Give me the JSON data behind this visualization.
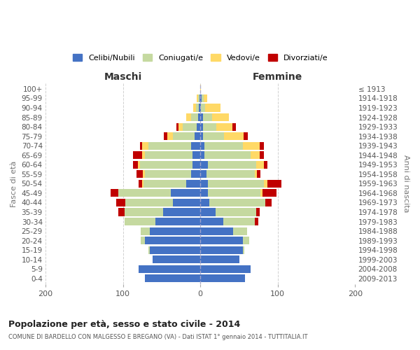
{
  "age_groups": [
    "0-4",
    "5-9",
    "10-14",
    "15-19",
    "20-24",
    "25-29",
    "30-34",
    "35-39",
    "40-44",
    "45-49",
    "50-54",
    "55-59",
    "60-64",
    "65-69",
    "70-74",
    "75-79",
    "80-84",
    "85-89",
    "90-94",
    "95-99",
    "100+"
  ],
  "birth_years": [
    "2009-2013",
    "2004-2008",
    "1999-2003",
    "1994-1998",
    "1989-1993",
    "1984-1988",
    "1979-1983",
    "1974-1978",
    "1969-1973",
    "1964-1968",
    "1959-1963",
    "1954-1958",
    "1949-1953",
    "1944-1948",
    "1939-1943",
    "1934-1938",
    "1929-1933",
    "1924-1928",
    "1919-1923",
    "1914-1918",
    "≤ 1913"
  ],
  "male_celibi": [
    72,
    80,
    62,
    65,
    72,
    65,
    58,
    48,
    35,
    38,
    18,
    12,
    10,
    10,
    12,
    7,
    5,
    3,
    2,
    1,
    0
  ],
  "male_coniugati": [
    0,
    0,
    0,
    2,
    5,
    12,
    40,
    50,
    62,
    68,
    55,
    60,
    68,
    62,
    55,
    28,
    18,
    9,
    4,
    2,
    0
  ],
  "male_vedovi": [
    0,
    0,
    0,
    0,
    0,
    0,
    0,
    0,
    0,
    0,
    2,
    2,
    3,
    3,
    8,
    8,
    5,
    6,
    3,
    2,
    0
  ],
  "male_divorziati": [
    0,
    0,
    0,
    0,
    0,
    0,
    0,
    8,
    12,
    10,
    5,
    8,
    6,
    12,
    3,
    4,
    3,
    0,
    0,
    0,
    0
  ],
  "female_celibi": [
    58,
    65,
    50,
    55,
    55,
    42,
    30,
    20,
    12,
    10,
    10,
    8,
    10,
    5,
    5,
    3,
    3,
    3,
    1,
    2,
    0
  ],
  "female_coniugati": [
    0,
    0,
    0,
    2,
    8,
    18,
    40,
    52,
    72,
    68,
    72,
    62,
    62,
    60,
    50,
    28,
    18,
    12,
    5,
    2,
    0
  ],
  "female_vedovi": [
    0,
    0,
    0,
    0,
    0,
    0,
    0,
    0,
    0,
    2,
    5,
    3,
    10,
    12,
    22,
    25,
    20,
    22,
    20,
    5,
    1
  ],
  "female_divorziati": [
    0,
    0,
    0,
    0,
    0,
    0,
    5,
    5,
    8,
    18,
    18,
    5,
    5,
    5,
    5,
    5,
    5,
    0,
    0,
    0,
    0
  ],
  "color_celibi": "#4472c4",
  "color_coniugati": "#c5d9a0",
  "color_vedovi": "#ffd966",
  "color_divorziati": "#c00000",
  "title": "Popolazione per età, sesso e stato civile - 2014",
  "subtitle": "COMUNE DI BARDELLO CON MALGESSO E BREGANO (VA) - Dati ISTAT 1° gennaio 2014 - TUTTITALIA.IT",
  "xlabel_maschi": "Maschi",
  "xlabel_femmine": "Femmine",
  "ylabel_left": "Fasce di età",
  "ylabel_right": "Anni di nascita",
  "xmin": -200,
  "xmax": 200,
  "background_color": "#ffffff",
  "grid_color": "#cccccc"
}
